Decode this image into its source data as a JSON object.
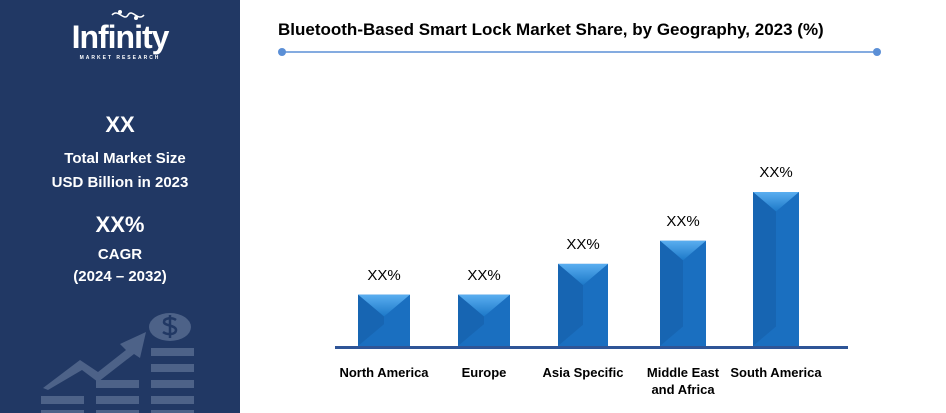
{
  "sidebar": {
    "logo_text": "Infinity",
    "logo_subtext": "MARKET RESEARCH",
    "market_size_value": "XX",
    "market_size_label_1": "Total Market Size",
    "market_size_label_2": "USD Billion in 2023",
    "cagr_value": "XX%",
    "cagr_label": "CAGR",
    "cagr_period": "(2024 – 2032)",
    "background_color": "#213864",
    "illustration_icon": "growth-chart-dollar-coin-icon"
  },
  "chart_data": {
    "type": "bar",
    "title": "Bluetooth-Based Smart Lock Market  Share, by Geography, 2023 (%)",
    "categories": [
      "North America",
      "Europe",
      "Asia Specific",
      "Middle East and Africa",
      "South America"
    ],
    "category_lines": [
      [
        "North America"
      ],
      [
        "Europe"
      ],
      [
        "Asia Specific"
      ],
      [
        "Middle East",
        "and Africa"
      ],
      [
        "South America"
      ]
    ],
    "values": [
      1,
      1,
      1.6,
      2.05,
      3
    ],
    "value_labels": [
      "XX%",
      "XX%",
      "XX%",
      "XX%",
      "XX%"
    ],
    "bar_color": "#1a6fc0",
    "axis_color": "#2e5597",
    "grid": false,
    "legend": "none"
  }
}
